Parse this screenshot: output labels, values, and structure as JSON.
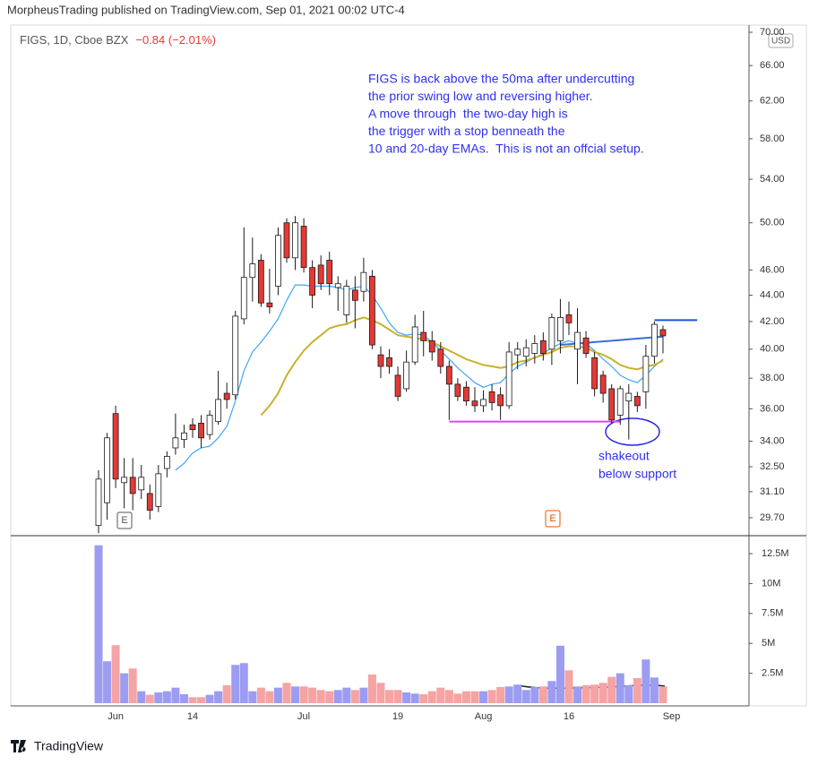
{
  "header": {
    "published": "MorpheusTrading published on TradingView.com, Sep 01, 2021 00:02 UTC-4",
    "symbol": "FIGS, 1D, Cboe BZX",
    "change": "−0.84 (−2.01%)"
  },
  "chart_data": {
    "type": "candlestick",
    "log": true,
    "currency": "USD",
    "categories": [
      null,
      null,
      "Jun",
      null,
      null,
      null,
      null,
      null,
      null,
      null,
      null,
      "14",
      null,
      null,
      null,
      null,
      null,
      null,
      null,
      null,
      null,
      null,
      null,
      null,
      "Jul",
      null,
      null,
      null,
      null,
      null,
      null,
      null,
      null,
      null,
      null,
      "19",
      null,
      null,
      null,
      null,
      null,
      null,
      null,
      null,
      null,
      "Aug",
      null,
      null,
      null,
      null,
      null,
      null,
      null,
      null,
      null,
      "16",
      null,
      null,
      null,
      null,
      null,
      null,
      null,
      null,
      null,
      null,
      null,
      "Sep"
    ],
    "open": [
      29.3,
      30.5,
      35.7,
      31.6,
      31.9,
      31.2,
      31,
      30.3,
      32.4,
      33.6,
      34.1,
      35,
      35.1,
      34.4,
      35.2,
      37,
      36.9,
      42.2,
      45.4,
      46.8,
      43.4,
      44.7,
      50,
      47,
      49.7,
      46.2,
      46.4,
      46.8,
      44.6,
      42.5,
      44.4,
      44.3,
      45.5,
      39.6,
      39.4,
      38.2,
      37.3,
      39.1,
      41.2,
      40.6,
      40,
      38.8,
      37.6,
      37.4,
      36.5,
      36.2,
      37.1,
      36.9,
      36.2,
      39.6,
      39.5,
      39.7,
      40.6,
      40,
      40.6,
      42.5,
      40,
      40.8,
      39.4,
      38.2,
      37.3,
      35.6,
      36.5,
      36.8,
      37.1,
      39.5,
      41.4,
      null
    ],
    "high": [
      32.3,
      34.5,
      36.2,
      33,
      33,
      32.6,
      31.5,
      32.6,
      33.4,
      35.7,
      35,
      35.4,
      35.6,
      35.9,
      38.5,
      37.7,
      42.8,
      49.6,
      48.7,
      47.3,
      46.1,
      49.6,
      50.4,
      50.6,
      50.4,
      46.8,
      47.2,
      47.5,
      45.5,
      45.2,
      45.5,
      47,
      46,
      40.2,
      40,
      38.8,
      39.9,
      42.5,
      42.8,
      41.3,
      40.5,
      39.2,
      38,
      37.8,
      37.4,
      37.2,
      37.6,
      37.4,
      40.5,
      40.5,
      40.7,
      41,
      41.2,
      42.6,
      43.7,
      43.5,
      43,
      41.3,
      39.8,
      38.5,
      37.6,
      37.5,
      37.6,
      37.1,
      40.3,
      42,
      41.7,
      null
    ],
    "low": [
      28.9,
      29.6,
      31.3,
      30.2,
      30.1,
      30.7,
      29.6,
      30,
      31.9,
      33.2,
      33.6,
      34.2,
      33.6,
      34.1,
      35,
      36,
      36.6,
      41.8,
      43.5,
      43.1,
      42.6,
      44,
      46.6,
      46,
      45.8,
      43,
      44.4,
      44,
      42.8,
      41.9,
      41.5,
      43.5,
      40,
      38,
      38.3,
      36.5,
      37.1,
      38.9,
      39.5,
      39.2,
      38.3,
      35.3,
      36.5,
      36.2,
      35.8,
      35.8,
      35.9,
      35.3,
      36,
      38.6,
      38.8,
      39,
      39.2,
      38.9,
      39.7,
      41,
      37.6,
      39.4,
      36.8,
      36.4,
      35.1,
      35,
      34.1,
      35.8,
      36,
      39,
      39.7,
      null
    ],
    "close": [
      31.8,
      34.2,
      31.8,
      31.9,
      31,
      31.9,
      30.1,
      32.1,
      33.1,
      34.2,
      34.5,
      34.7,
      34.2,
      35.6,
      36.6,
      36.6,
      42.4,
      45.4,
      46.5,
      43.4,
      43.1,
      48.9,
      47,
      50,
      46.2,
      44,
      44.9,
      44.9,
      44.9,
      44.7,
      43.6,
      45.8,
      40.3,
      38.8,
      38.8,
      36.8,
      39.1,
      41.6,
      40.6,
      39.8,
      38.8,
      37.6,
      36.8,
      36.5,
      36.2,
      36.6,
      36.4,
      36.2,
      39.8,
      40,
      40.1,
      40.4,
      39.7,
      42.3,
      42.3,
      41.9,
      41.2,
      39.7,
      37.3,
      37,
      35.3,
      37.3,
      37,
      36.2,
      39.5,
      41.79,
      40.95,
      null
    ],
    "up_color": "#ffffff",
    "down_color": "#e53935",
    "outline_color": "#1a1a1a",
    "ylim": [
      28.775,
      70.89
    ],
    "yticks": [
      {
        "value": 29.7,
        "label": "29.70"
      },
      {
        "value": 31.1,
        "label": "31.10"
      },
      {
        "value": 32.5,
        "label": "32.50"
      },
      {
        "value": 34,
        "label": "34.00"
      },
      {
        "value": 36,
        "label": "36.00"
      },
      {
        "value": 38,
        "label": "38.00"
      },
      {
        "value": 40,
        "label": "40.00"
      },
      {
        "value": 42,
        "label": "42.00"
      },
      {
        "value": 44,
        "label": "44.00"
      },
      {
        "value": 46,
        "label": "46.00"
      },
      {
        "value": 50,
        "label": "50.00"
      },
      {
        "value": 54,
        "label": "54.00"
      },
      {
        "value": 58,
        "label": "58.00"
      },
      {
        "value": 62,
        "label": "62.00"
      },
      {
        "value": 66,
        "label": "66.00"
      },
      {
        "value": 70,
        "label": "70.00"
      }
    ],
    "series": [
      {
        "color": "#42a5f5",
        "values": [
          null,
          null,
          null,
          null,
          null,
          null,
          null,
          null,
          null,
          32.3,
          32.7,
          33.3,
          33.6,
          33.7,
          34.2,
          34.9,
          36.5,
          38.5,
          39.8,
          40.5,
          41.3,
          42.2,
          43.6,
          44.8,
          44.8,
          44.7,
          44.7,
          44.7,
          44.6,
          44.4,
          44.6,
          44.7,
          44,
          43,
          41.9,
          41.2,
          41,
          41.1,
          41,
          40.5,
          39.9,
          39.3,
          38.7,
          38.2,
          37.7,
          37.4,
          37.6,
          37.7,
          38.3,
          38.8,
          39.1,
          39.4,
          39.7,
          40.1,
          40.4,
          40.6,
          40.4,
          40.4,
          39.9,
          39.3,
          38.8,
          38.2,
          37.9,
          37.7,
          38.2,
          38.8,
          39.3,
          null
        ]
      },
      {
        "color": "#c9b12c",
        "values": [
          null,
          null,
          null,
          null,
          null,
          null,
          null,
          null,
          null,
          null,
          null,
          null,
          null,
          null,
          null,
          null,
          null,
          null,
          null,
          35.6,
          36.2,
          37,
          38.2,
          39.1,
          39.9,
          40.5,
          41,
          41.5,
          41.7,
          41.8,
          42.1,
          42.3,
          42.1,
          41.8,
          41.4,
          41,
          40.9,
          40.8,
          40.7,
          40.5,
          40.2,
          39.9,
          39.6,
          39.3,
          39.1,
          38.9,
          38.8,
          38.7,
          38.8,
          39.1,
          39.2,
          39.4,
          39.6,
          39.8,
          40.1,
          40.2,
          40.2,
          40.1,
          39.8,
          39.6,
          39.3,
          38.9,
          38.7,
          38.6,
          38.8,
          38.9,
          39.2,
          null
        ]
      },
      {
        "color": "#3a6fd8",
        "values": [
          null,
          null,
          null,
          null,
          null,
          null,
          null,
          null,
          null,
          null,
          null,
          null,
          null,
          null,
          null,
          null,
          null,
          null,
          null,
          null,
          null,
          null,
          null,
          null,
          null,
          null,
          null,
          null,
          null,
          null,
          null,
          null,
          null,
          null,
          null,
          null,
          null,
          null,
          null,
          null,
          null,
          null,
          null,
          null,
          null,
          null,
          null,
          null,
          null,
          null,
          null,
          null,
          null,
          null,
          40.3,
          40.35,
          40.4,
          40.45,
          40.5,
          40.55,
          40.6,
          40.65,
          40.7,
          40.75,
          40.8,
          40.85,
          40.9,
          null
        ]
      }
    ],
    "lines": [
      {
        "value": 35.2,
        "color": "#e040fb"
      },
      {
        "value": 42.1,
        "color": "#1e53e5"
      }
    ],
    "events": [
      {
        "label": "E"
      },
      {
        "label": "E"
      }
    ],
    "annotations": [
      "FIGS is back above the 50ma after undercutting",
      "the prior swing low and reversing higher.",
      "A move through  the two-day high is",
      "the trigger with a stop benneath the",
      "10 and 20-day EMAs.  This is not an offcial setup."
    ],
    "callout": [
      "shakeout",
      "below support"
    ],
    "volume": {
      "values": [
        13200000,
        3500000,
        4850000,
        2500000,
        2900000,
        1000000,
        700000,
        900000,
        1000000,
        1300000,
        750000,
        500000,
        500000,
        700000,
        1000000,
        1500000,
        3200000,
        3350000,
        1000000,
        1300000,
        1000000,
        1300000,
        1700000,
        1400000,
        1400000,
        1300000,
        1100000,
        1000000,
        1100000,
        1300000,
        1100000,
        1300000,
        2400000,
        1700000,
        1100000,
        1100000,
        900000,
        800000,
        750000,
        1000000,
        1300000,
        1100000,
        800000,
        1000000,
        1000000,
        1000000,
        1100000,
        1350000,
        1400000,
        1550000,
        1100000,
        1350000,
        1400000,
        1850000,
        4800000,
        2750000,
        1400000,
        1500000,
        1550000,
        1700000,
        2200000,
        2500000,
        1500000,
        2100000,
        3650000,
        2150000,
        1400000,
        null
      ],
      "up_color": "#9c9cf2",
      "down_color": "#f5a3a3",
      "ylim": [
        0,
        14000000
      ],
      "yticks": [
        {
          "value": 2500000,
          "label": "2.5M"
        },
        {
          "value": 5000000,
          "label": "5M"
        },
        {
          "value": 7500000,
          "label": "7.5M"
        },
        {
          "value": 10000000,
          "label": "10M"
        },
        {
          "value": 12500000,
          "label": "12.5M"
        }
      ]
    }
  },
  "footer": {
    "brand": "TradingView"
  }
}
